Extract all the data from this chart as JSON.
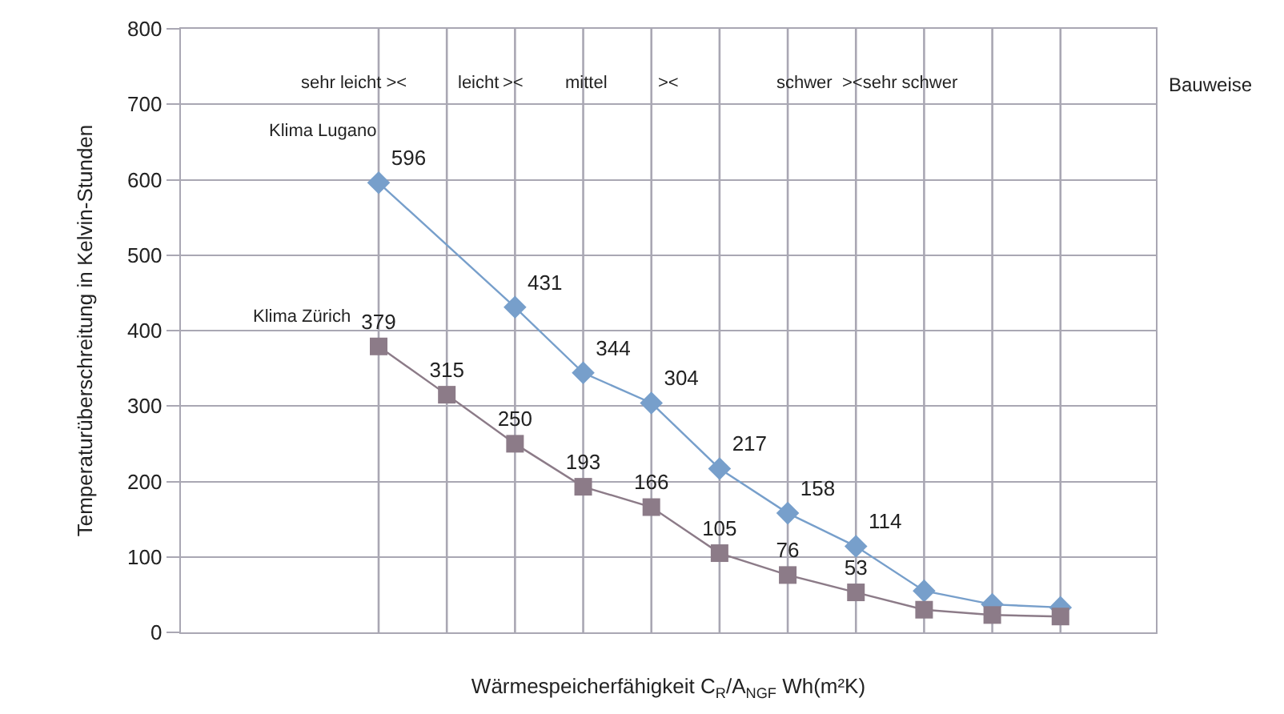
{
  "chart_data": {
    "type": "line",
    "xlabel": "Wärmespeicherfähigkeit C$_{R}$/A$_{NGF}$ Wh(m²K)",
    "ylabel": "Temperaturüberschreitung in Kelvin-Stunden",
    "categories": [
      null,
      null,
      null,
      null,
      null,
      null,
      null,
      null,
      null,
      null,
      null
    ],
    "series": [
      {
        "name": "Klima Lugano",
        "color": "#779fcb",
        "marker": "diamond",
        "values": [
          596,
          null,
          431,
          344,
          304,
          217,
          158,
          114,
          55,
          37,
          33
        ],
        "value_labels": [
          "596",
          null,
          "431",
          "344",
          "304",
          "217",
          "158",
          "114",
          null,
          null,
          null
        ]
      },
      {
        "name": "Klima Zürich",
        "color": "#8c7b88",
        "marker": "square",
        "values": [
          379,
          315,
          250,
          193,
          166,
          105,
          76,
          53,
          30,
          23,
          21
        ],
        "value_labels": [
          "379",
          "315",
          "250",
          "193",
          "166",
          "105",
          "76",
          "53",
          null,
          null,
          null
        ]
      }
    ],
    "annotations": [
      "sehr leicht ><",
      "leicht",
      "><",
      "mittel",
      "><",
      "schwer",
      "><sehr schwer",
      "Bauweise"
    ],
    "ylim": [
      0,
      800
    ],
    "yticks": [
      0,
      100,
      200,
      300,
      400,
      500,
      600,
      700,
      800
    ],
    "grid": true,
    "legend": false,
    "line_style": "solid"
  }
}
